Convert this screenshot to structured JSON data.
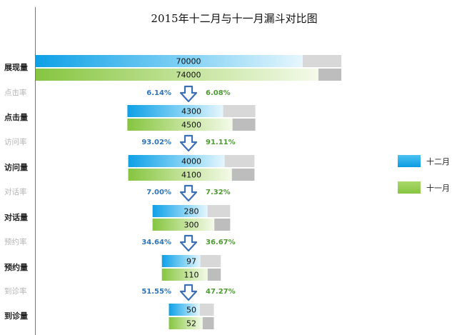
{
  "chart_data": {
    "type": "bar",
    "title": "2015年十二月与十一月漏斗对比图",
    "categories": [
      "展现量",
      "点击量",
      "访问量",
      "对话量",
      "预约量",
      "到诊量"
    ],
    "series": [
      {
        "name": "十二月",
        "values": [
          70000,
          4300,
          4000,
          280,
          97,
          50
        ],
        "color": "#1aa8e8"
      },
      {
        "name": "十一月",
        "values": [
          74000,
          4500,
          4100,
          300,
          110,
          52
        ],
        "color": "#92cc4e"
      }
    ],
    "rate_labels": [
      "点击率",
      "访问率",
      "对话率",
      "预约率",
      "到诊率"
    ],
    "rates": [
      {
        "dec": "6.14%",
        "nov": "6.08%"
      },
      {
        "dec": "93.02%",
        "nov": "91.11%"
      },
      {
        "dec": "7.00%",
        "nov": "7.32%"
      },
      {
        "dec": "34.64%",
        "nov": "36.67%"
      },
      {
        "dec": "51.55%",
        "nov": "47.27%"
      }
    ],
    "legend_position": "right",
    "colors": {
      "placeholder": "#d8d8d8",
      "placeholder_dark": "#bdbdbd",
      "arrow": "#3d6fb6",
      "axis": "#777777"
    }
  }
}
